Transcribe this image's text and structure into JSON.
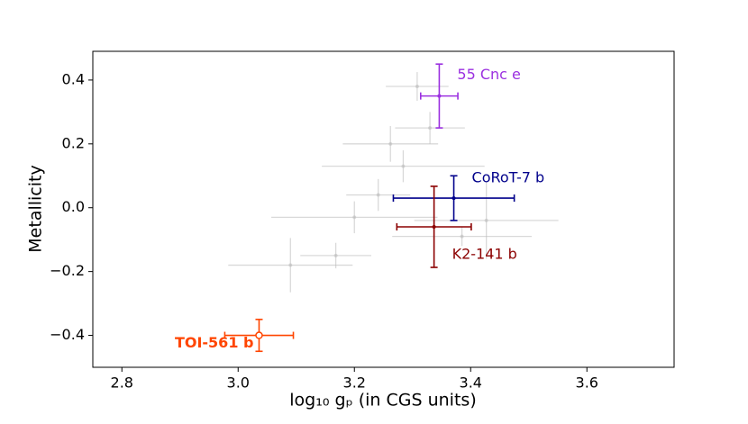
{
  "chart_data": {
    "type": "scatter",
    "xlabel": "log₁₀ gₚ (in CGS units)",
    "ylabel": "Metallicity",
    "xlim": [
      2.75,
      3.75
    ],
    "ylim": [
      -0.5,
      0.49
    ],
    "xticks": [
      2.8,
      {
        "value": 3,
        "label": "3.0"
      },
      3.2,
      3.4,
      3.6
    ],
    "yticks": [
      {
        "value": -0.4,
        "label": "−0.4"
      },
      {
        "value": -0.2,
        "label": "−0.2"
      },
      {
        "value": 0,
        "label": "0.0"
      },
      0.2,
      0.4
    ],
    "background": {
      "color": "#bbbbbb",
      "x": [
        3.308,
        3.33,
        3.262,
        3.284,
        3.241,
        3.2,
        3.427,
        3.385,
        3.168,
        3.09
      ],
      "y": [
        0.38,
        0.25,
        0.2,
        0.13,
        0.04,
        -0.03,
        -0.04,
        -0.09,
        -0.15,
        -0.18
      ],
      "xerr": [
        0.054,
        0.06,
        0.082,
        0.14,
        0.055,
        0.143,
        0.124,
        0.12,
        0.061,
        0.107
      ],
      "yerr": [
        0.045,
        0.05,
        0.056,
        0.05,
        0.05,
        0.05,
        0.12,
        0.03,
        0.04,
        0.085
      ]
    },
    "series": [
      {
        "name": "55 Cnc e",
        "color": "#9b30e0",
        "x": 3.346,
        "y": 0.35,
        "xerr": 0.032,
        "yerr": 0.1
      },
      {
        "name": "CoRoT-7 b",
        "color": "#00008b",
        "x": 3.371,
        "y": 0.03,
        "xerr": 0.104,
        "yerr": 0.07
      },
      {
        "name": "K2-141 b",
        "color": "#8b0000",
        "x": 3.337,
        "y": -0.06,
        "xerr": 0.064,
        "yerr": 0.127
      },
      {
        "name": "TOI-561 b",
        "color": "#ff4500",
        "x": 3.036,
        "y": -0.4,
        "xerr": 0.059,
        "yerr": 0.05,
        "hollow": true
      }
    ]
  }
}
